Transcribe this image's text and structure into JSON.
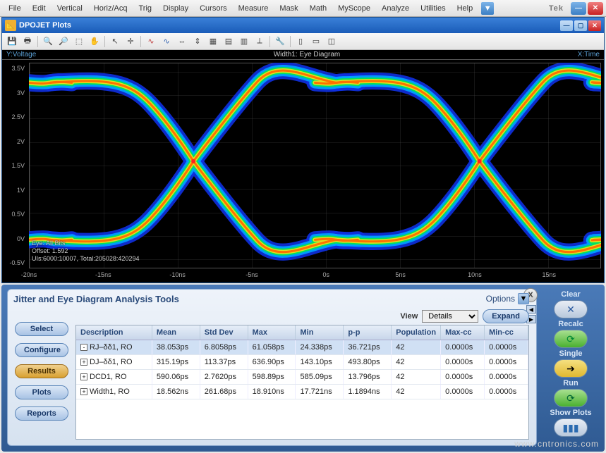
{
  "main_menu": [
    "File",
    "Edit",
    "Vertical",
    "Horiz/Acq",
    "Trig",
    "Display",
    "Cursors",
    "Measure",
    "Mask",
    "Math",
    "MyScope",
    "Analyze",
    "Utilities",
    "Help"
  ],
  "brand": "Tek",
  "mdi": {
    "title": "DPOJET Plots"
  },
  "plot": {
    "y_label": "Y:Voltage",
    "title": "Width1: Eye Diagram",
    "x_label": "X:Time",
    "y_ticks": [
      "3.5V",
      "3V",
      "2.5V",
      "2V",
      "1.5V",
      "1V",
      "0.5V",
      "0V",
      "-0.5V"
    ],
    "x_ticks": [
      "-20ns",
      "-15ns",
      "-10ns",
      "-5ns",
      "0s",
      "5ns",
      "10ns",
      "15ns"
    ],
    "info1": "Eye: All Bits",
    "info2": "Offset: 1.592",
    "info3": "UIs:6000:10007, Total:205028:420294"
  },
  "analysis": {
    "title": "Jitter and Eye Diagram Analysis Tools",
    "options": "Options",
    "view_label": "View",
    "view_value": "Details",
    "expand": "Expand",
    "nav": [
      "Select",
      "Configure",
      "Results",
      "Plots",
      "Reports"
    ],
    "columns": [
      "Description",
      "Mean",
      "Std Dev",
      "Max",
      "Min",
      "p-p",
      "Population",
      "Max-cc",
      "Min-cc"
    ],
    "rows": [
      {
        "hl": true,
        "tree": "-",
        "cells": [
          "RJ–δδ1, RO",
          "38.053ps",
          "6.8058ps",
          "61.058ps",
          "24.338ps",
          "36.721ps",
          "42",
          "0.0000s",
          "0.0000s"
        ]
      },
      {
        "hl": false,
        "tree": "+",
        "cells": [
          "DJ–δδ1, RO",
          "315.19ps",
          "113.37ps",
          "636.90ps",
          "143.10ps",
          "493.80ps",
          "42",
          "0.0000s",
          "0.0000s"
        ]
      },
      {
        "hl": false,
        "tree": "+",
        "cells": [
          "DCD1, RO",
          "590.06ps",
          "2.7620ps",
          "598.89ps",
          "585.09ps",
          "13.796ps",
          "42",
          "0.0000s",
          "0.0000s"
        ]
      },
      {
        "hl": false,
        "tree": "+",
        "cells": [
          "Width1, RO",
          "18.562ns",
          "261.68ps",
          "18.910ns",
          "17.721ns",
          "1.1894ns",
          "42",
          "0.0000s",
          "0.0000s"
        ]
      }
    ]
  },
  "right": {
    "clear": "Clear",
    "recalc": "Recalc",
    "single": "Single",
    "run": "Run",
    "show_plots": "Show Plots"
  },
  "watermark": "www.cntronics.com"
}
